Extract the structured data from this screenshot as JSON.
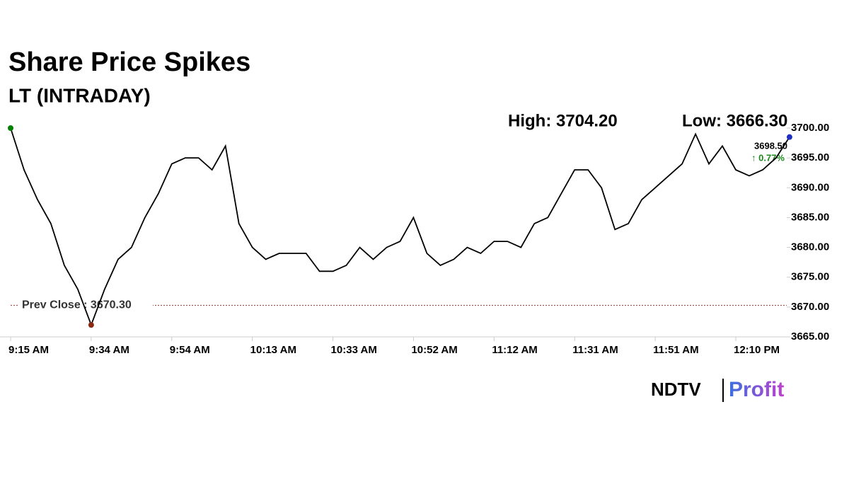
{
  "chart_data": {
    "type": "line",
    "title": "Share Price Spikes",
    "subtitle": "LT (INTRADAY)",
    "high_label": "High: 3704.20",
    "low_label": "Low: 3666.30",
    "prev_close": {
      "value": 3670.3,
      "label": "Prev Close : 3670.30"
    },
    "last_price_label": "3698.50",
    "change_label": "↑ 0.77%",
    "categories": [
      "9:15 AM",
      null,
      null,
      null,
      null,
      null,
      "9:34 AM",
      null,
      null,
      null,
      null,
      null,
      "9:54 AM",
      null,
      null,
      null,
      null,
      null,
      "10:13 AM",
      null,
      null,
      null,
      null,
      null,
      "10:33 AM",
      null,
      null,
      null,
      null,
      null,
      "10:52 AM",
      null,
      null,
      null,
      null,
      null,
      "11:12 AM",
      null,
      null,
      null,
      null,
      null,
      "11:31 AM",
      null,
      null,
      null,
      null,
      null,
      "11:51 AM",
      null,
      null,
      null,
      null,
      null,
      "12:10 PM",
      null,
      null,
      null,
      null
    ],
    "series": [
      {
        "name": "LT",
        "color": "#000000",
        "values": [
          3700,
          3693,
          3688,
          3684,
          3677,
          3673,
          3667,
          3673,
          3678,
          3680,
          3685,
          3689,
          3694,
          3695,
          3695,
          3693,
          3697,
          3684,
          3680,
          3678,
          3679,
          3679,
          3679,
          3676,
          3676,
          3677,
          3680,
          3678,
          3680,
          3681,
          3685,
          3679,
          3677,
          3678,
          3680,
          3679,
          3681,
          3681,
          3680,
          3684,
          3685,
          3689,
          3693,
          3693,
          3690,
          3683,
          3684,
          3688,
          3690,
          3692,
          3694,
          3699,
          3694,
          3697,
          3693,
          3692,
          3693,
          3695,
          3698.5
        ]
      }
    ],
    "ylim": [
      3665,
      3700
    ],
    "yticks": [
      {
        "value": 3665,
        "label": "3665.00"
      },
      {
        "value": 3670,
        "label": "3670.00"
      },
      {
        "value": 3675,
        "label": "3675.00"
      },
      {
        "value": 3680,
        "label": "3680.00"
      },
      {
        "value": 3685,
        "label": "3685.00"
      },
      {
        "value": 3690,
        "label": "3690.00"
      },
      {
        "value": 3695,
        "label": "3695.00"
      },
      {
        "value": 3700,
        "label": "3700.00"
      }
    ]
  },
  "logo": {
    "brand": "NDTV",
    "product": "Profit"
  }
}
